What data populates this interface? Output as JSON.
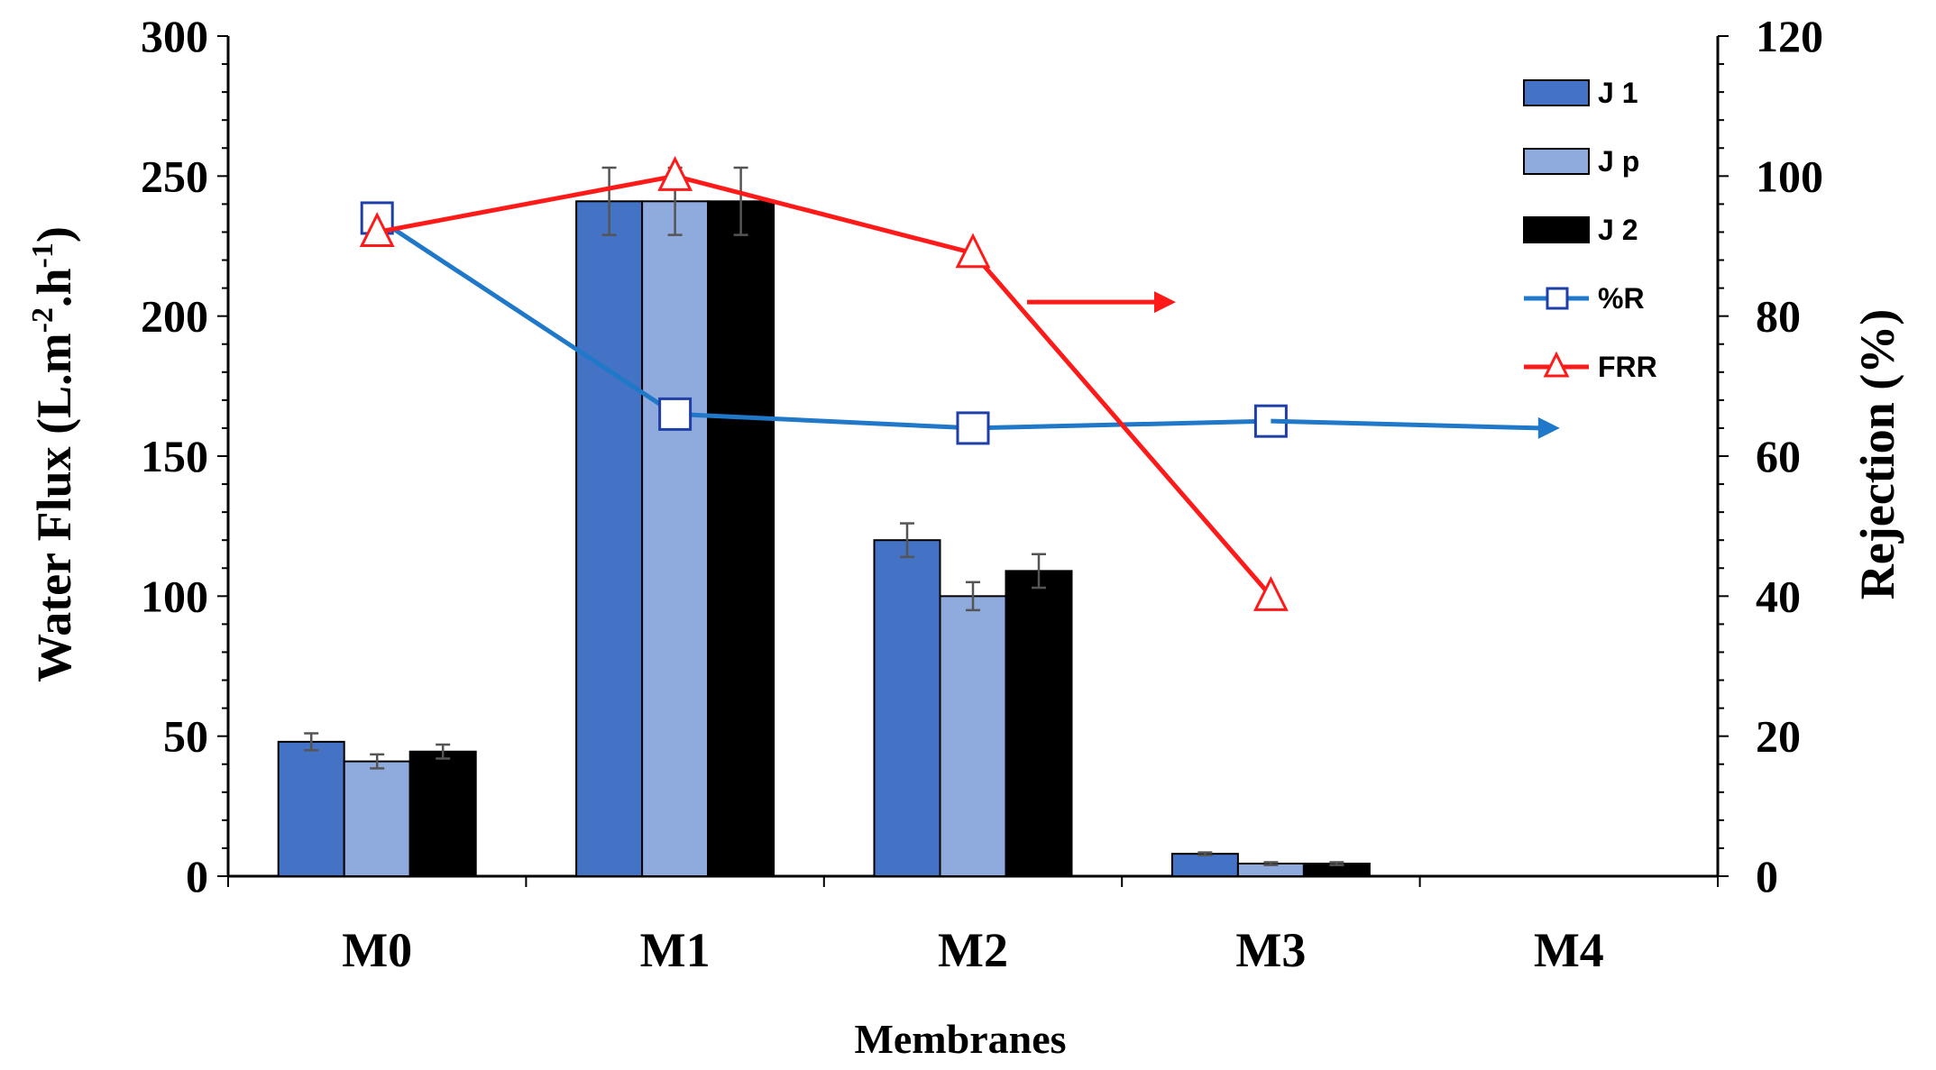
{
  "chart_data": {
    "type": "bar",
    "categories": [
      "M0",
      "M1",
      "M2",
      "M3",
      "M4"
    ],
    "xlabel": "Membranes",
    "ylabel_left": "Water Flux (L.m",
    "ylabel_left_sup1": "-2",
    "ylabel_left_mid": ".h",
    "ylabel_left_sup2": "-1",
    "ylabel_left_end": ")",
    "ylabel_right": "Rejection (%)",
    "ylim_left": [
      0,
      300
    ],
    "ylim_right": [
      0,
      120
    ],
    "left_ticks": [
      0,
      50,
      100,
      150,
      200,
      250,
      300
    ],
    "right_ticks": [
      0,
      20,
      40,
      60,
      80,
      100,
      120
    ],
    "bar_series": [
      {
        "name": "J 1",
        "color": "#4472C4",
        "values": [
          48,
          241,
          120,
          8,
          0
        ],
        "errors": [
          3,
          12,
          6,
          0.5,
          0
        ]
      },
      {
        "name": "J p",
        "color": "#8FAADC",
        "values": [
          41,
          241,
          100,
          4.5,
          0
        ],
        "errors": [
          2.5,
          12,
          5,
          0.5,
          0
        ]
      },
      {
        "name": "J 2",
        "color": "#000000",
        "values": [
          44.5,
          241,
          109,
          4.5,
          0
        ],
        "errors": [
          2.5,
          12,
          6,
          0.5,
          0
        ]
      }
    ],
    "line_series": [
      {
        "name": "%R",
        "color": "#1F78C8",
        "marker": "square",
        "axis": "right",
        "values": [
          94,
          66,
          64,
          65,
          null
        ],
        "extra_point_value": 64
      },
      {
        "name": "FRR",
        "color": "#FF1A1A",
        "marker": "triangle",
        "axis": "right",
        "values": [
          92,
          100,
          89,
          40,
          null
        ]
      }
    ],
    "annotations": [
      {
        "type": "arrow",
        "color": "#FF1A1A",
        "y_value": 82,
        "direction": "right"
      },
      {
        "type": "arrow",
        "color": "#1F78C8",
        "y_value": 64,
        "direction": "right"
      }
    ],
    "legend_position": "top-right",
    "grid": false
  }
}
